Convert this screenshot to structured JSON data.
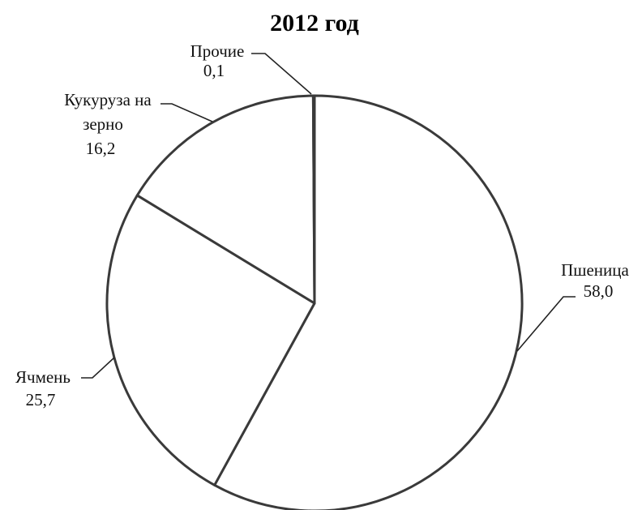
{
  "chart_data": {
    "type": "pie",
    "title": "2012 год",
    "start_angle_deg": 0,
    "direction": "clockwise",
    "slices": [
      {
        "name": "Пшеница",
        "value": 58.0,
        "value_label": "58,0",
        "label_lines": [
          "Пшеница"
        ]
      },
      {
        "name": "Ячмень",
        "value": 25.7,
        "value_label": "25,7",
        "label_lines": [
          "Ячмень"
        ]
      },
      {
        "name": "Кукуруза на зерно",
        "value": 16.2,
        "value_label": "16,2",
        "label_lines": [
          "Кукуруза  на",
          "зерно"
        ]
      },
      {
        "name": "Прочие",
        "value": 0.1,
        "value_label": "0,1",
        "label_lines": [
          "Прочие"
        ]
      }
    ],
    "colors": {
      "fill": "#ffffff",
      "stroke": "#3a3a3a"
    }
  }
}
